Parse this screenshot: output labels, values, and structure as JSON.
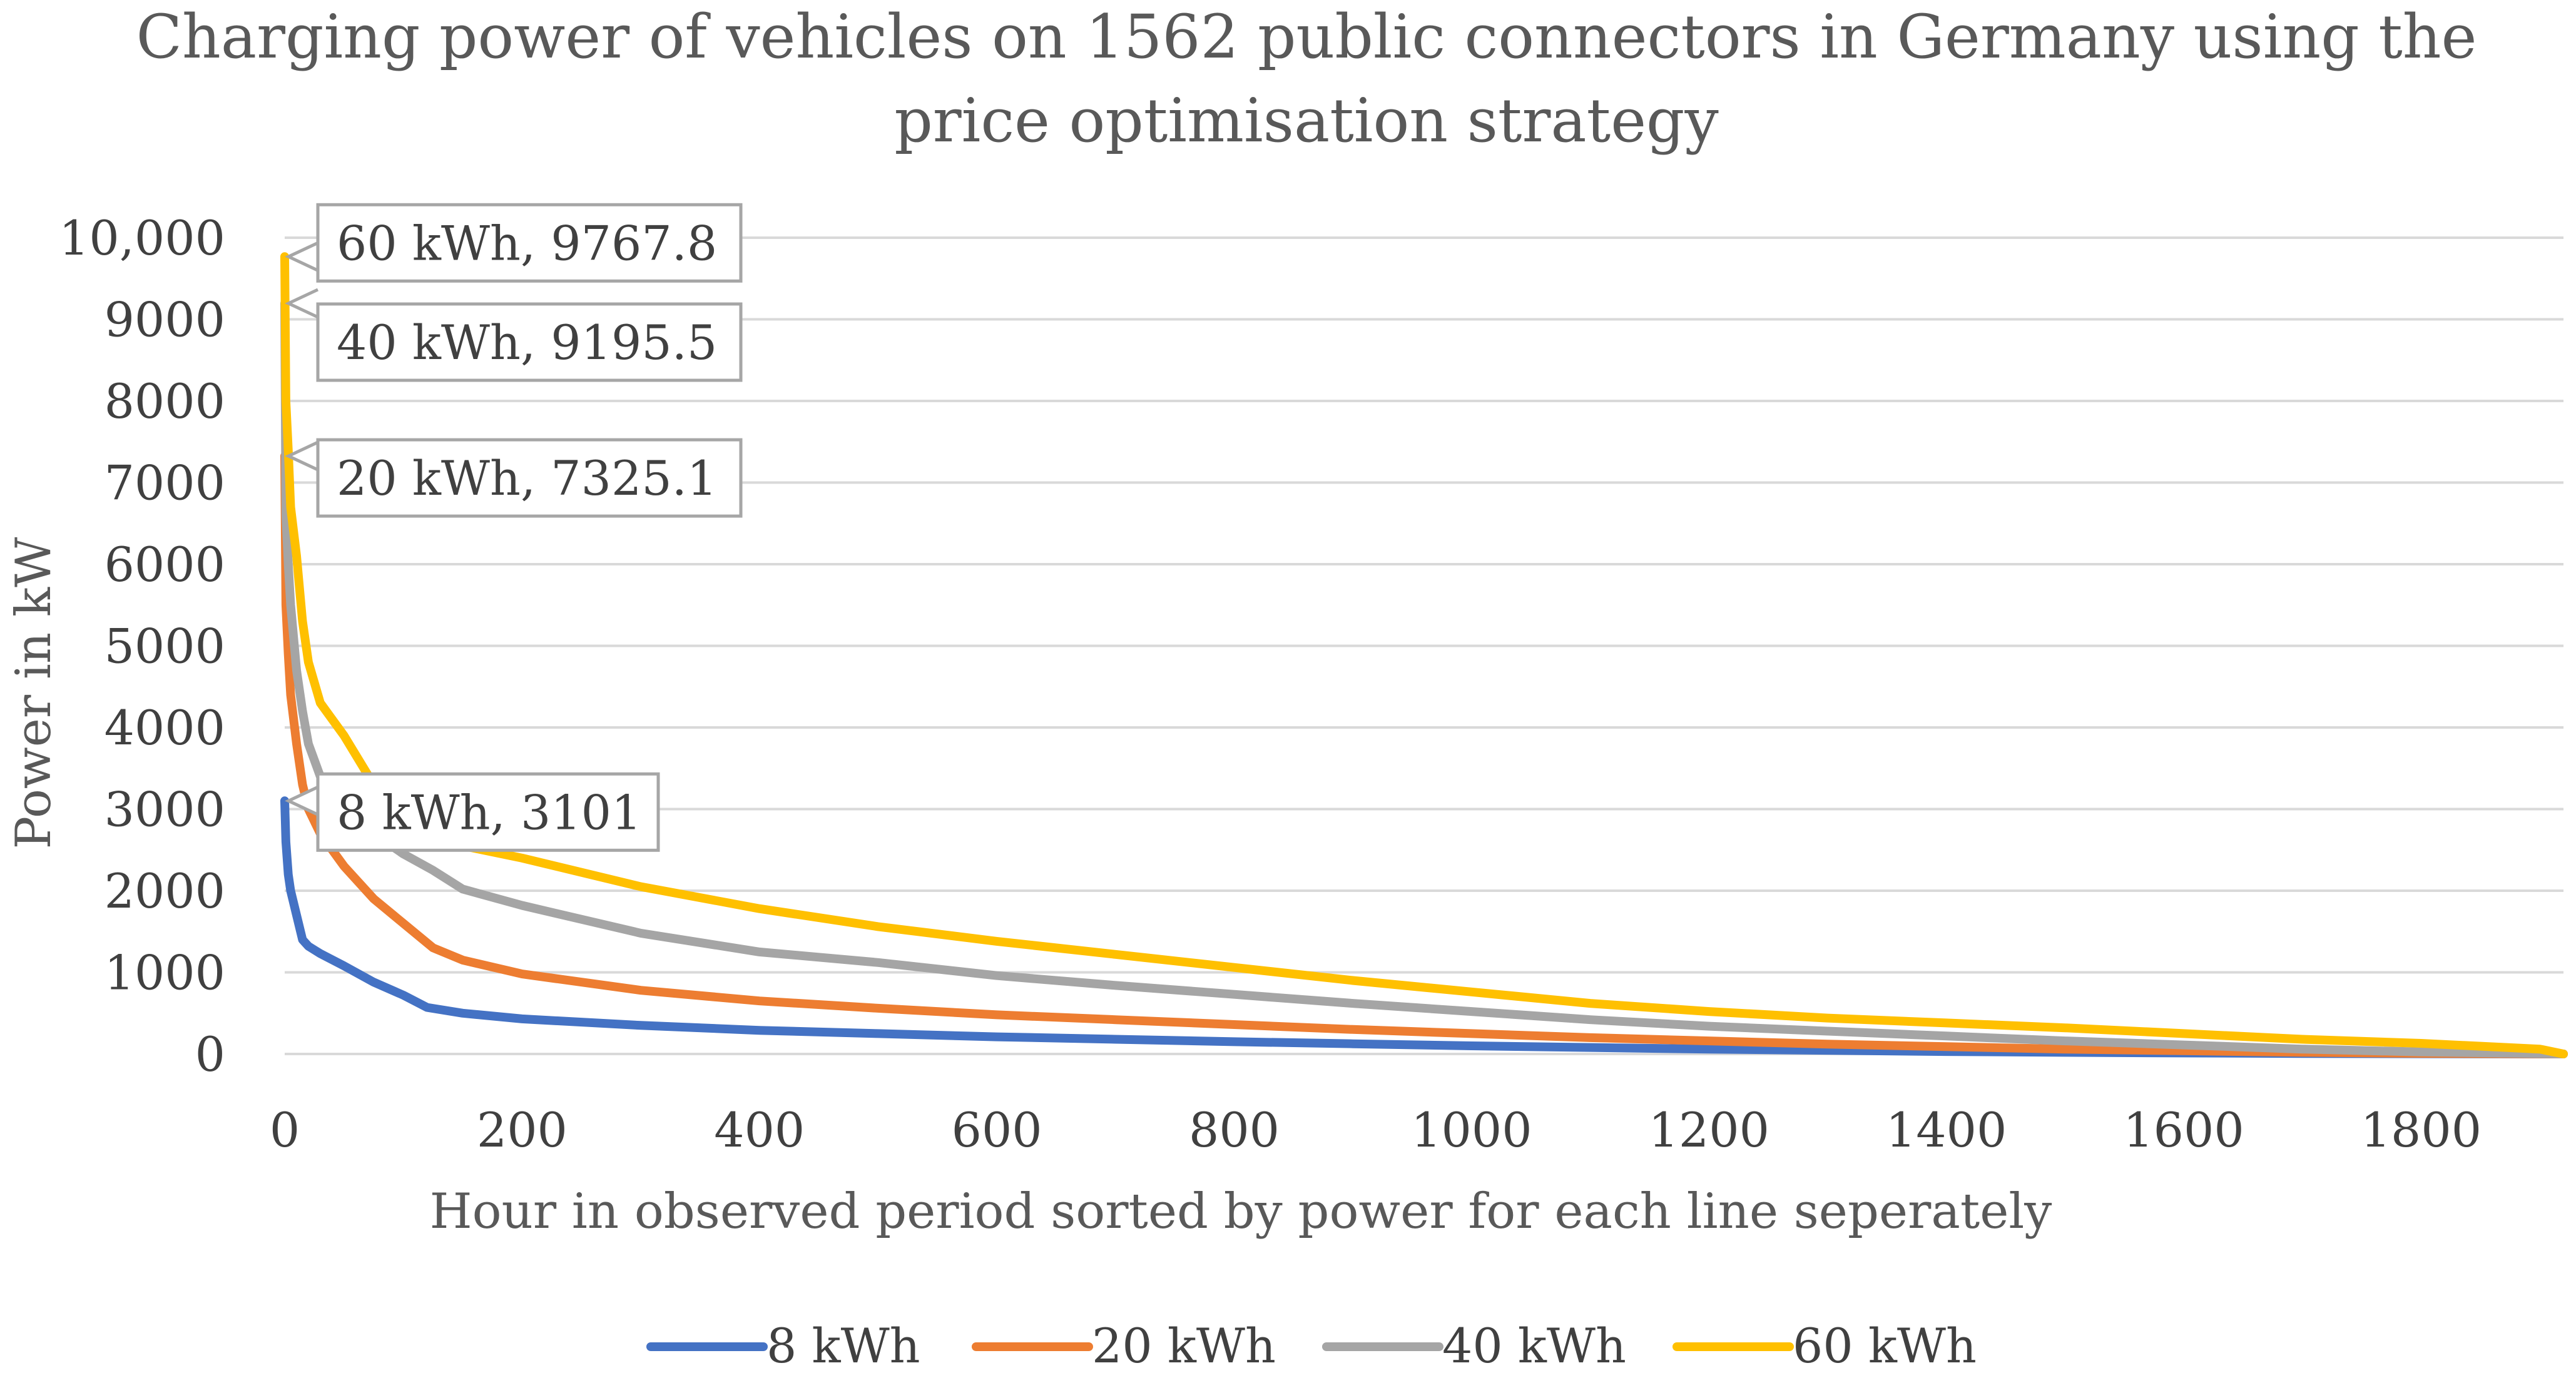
{
  "chart_data": {
    "type": "line",
    "title_lines": [
      "Charging power of vehicles on 1562 public connectors in Germany using the",
      "price optimisation strategy"
    ],
    "xlabel": "Hour in observed period sorted by power for each line seperately",
    "ylabel": "Power in kW",
    "xlim": [
      0,
      1920
    ],
    "ylim": [
      0,
      10000
    ],
    "x_ticks": [
      0,
      200,
      400,
      600,
      800,
      1000,
      1200,
      1400,
      1600,
      1800
    ],
    "x_tick_labels": [
      "0",
      "200",
      "400",
      "600",
      "800",
      "1000",
      "1200",
      "1400",
      "1600",
      "1800"
    ],
    "y_ticks": [
      0,
      1000,
      2000,
      3000,
      4000,
      5000,
      6000,
      7000,
      8000,
      9000,
      10000
    ],
    "y_tick_labels": [
      "0",
      "1000",
      "2000",
      "3000",
      "4000",
      "5000",
      "6000",
      "7000",
      "8000",
      "9000",
      "10,000"
    ],
    "grid": true,
    "legend_position": "bottom",
    "series": [
      {
        "name": "8 kWh",
        "color": "#4472c4",
        "x": [
          0,
          1,
          3,
          5,
          10,
          15,
          20,
          30,
          50,
          75,
          100,
          120,
          150,
          200,
          300,
          400,
          500,
          600,
          700,
          800,
          900,
          1000,
          1100,
          1200,
          1300,
          1400,
          1500,
          1600,
          1700,
          1800,
          1900,
          1920
        ],
        "y": [
          3101,
          2600,
          2200,
          2000,
          1700,
          1400,
          1320,
          1230,
          1080,
          880,
          720,
          570,
          500,
          430,
          350,
          290,
          250,
          210,
          180,
          150,
          125,
          100,
          80,
          60,
          45,
          30,
          20,
          12,
          6,
          3,
          1,
          0
        ]
      },
      {
        "name": "20 kWh",
        "color": "#ed7d31",
        "x": [
          0,
          1,
          3,
          5,
          10,
          15,
          20,
          30,
          50,
          75,
          100,
          125,
          150,
          200,
          300,
          400,
          500,
          600,
          700,
          800,
          900,
          1000,
          1100,
          1200,
          1300,
          1400,
          1500,
          1600,
          1700,
          1800,
          1900,
          1920
        ],
        "y": [
          7325.1,
          5500,
          4900,
          4400,
          3800,
          3300,
          3000,
          2700,
          2300,
          1900,
          1600,
          1300,
          1150,
          980,
          780,
          650,
          560,
          480,
          420,
          360,
          300,
          250,
          200,
          160,
          120,
          90,
          60,
          40,
          20,
          8,
          2,
          0
        ]
      },
      {
        "name": "40 kWh",
        "color": "#a5a5a5",
        "x": [
          0,
          1,
          3,
          5,
          10,
          15,
          20,
          30,
          50,
          75,
          100,
          125,
          150,
          200,
          300,
          400,
          500,
          600,
          700,
          800,
          900,
          1000,
          1100,
          1200,
          1300,
          1400,
          1500,
          1600,
          1700,
          1800,
          1900,
          1920
        ],
        "y": [
          9195.5,
          6600,
          6000,
          5500,
          4700,
          4200,
          3800,
          3400,
          3000,
          2700,
          2450,
          2250,
          2020,
          1820,
          1480,
          1250,
          1120,
          960,
          840,
          730,
          620,
          520,
          420,
          340,
          280,
          220,
          160,
          110,
          60,
          25,
          5,
          0
        ]
      },
      {
        "name": "60 kWh",
        "color": "#ffc000",
        "x": [
          0,
          1,
          3,
          5,
          10,
          15,
          20,
          30,
          50,
          75,
          100,
          125,
          150,
          200,
          300,
          400,
          500,
          600,
          700,
          800,
          900,
          1000,
          1100,
          1200,
          1300,
          1400,
          1500,
          1600,
          1700,
          1800,
          1900,
          1920
        ],
        "y": [
          9767.8,
          8000,
          7400,
          6700,
          6100,
          5300,
          4800,
          4300,
          3900,
          3300,
          2900,
          2700,
          2550,
          2400,
          2050,
          1780,
          1560,
          1380,
          1220,
          1060,
          900,
          760,
          620,
          520,
          440,
          380,
          320,
          250,
          180,
          130,
          60,
          0
        ]
      }
    ],
    "annotations": [
      {
        "text": "60 kWh, 9767.8",
        "series": "60 kWh",
        "x": 0,
        "y": 9767.8
      },
      {
        "text": "40 kWh, 9195.5",
        "series": "40 kWh",
        "x": 0,
        "y": 9195.5
      },
      {
        "text": "20 kWh, 7325.1",
        "series": "20 kWh",
        "x": 0,
        "y": 7325.1
      },
      {
        "text": "8 kWh, 3101",
        "series": "8 kWh",
        "x": 0,
        "y": 3101
      }
    ]
  }
}
